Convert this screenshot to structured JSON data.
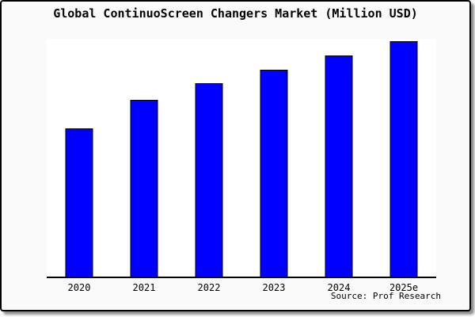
{
  "frame": {
    "background_color": "#fafafa",
    "border_color": "#000000",
    "plot_background_color": "#ffffff"
  },
  "chart_data": {
    "type": "bar",
    "title": "Global ContinuoScreen Changers Market (Million USD)",
    "categories": [
      "2020",
      "2021",
      "2022",
      "2023",
      "2024",
      "2025e"
    ],
    "values": [
      63,
      75,
      82,
      88,
      94,
      100
    ],
    "xlabel": "",
    "ylabel": "",
    "ylim": [
      0,
      101
    ],
    "grid": false,
    "legend_position": "none",
    "y_axis_ticks_visible": false,
    "bar_color": "#0000ff",
    "bar_border_color": "#000000"
  },
  "source_note": "Source: Prof Research"
}
